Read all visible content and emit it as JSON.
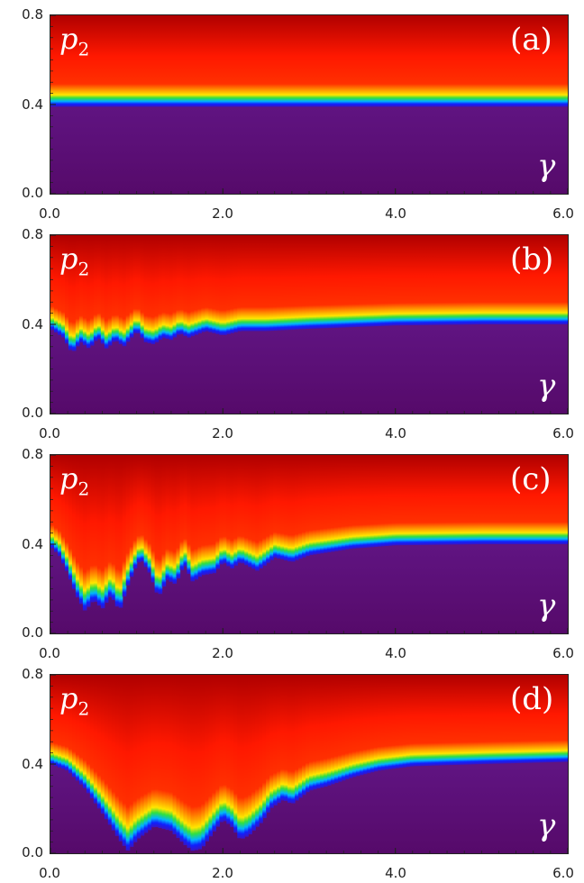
{
  "chart_data": [
    {
      "type": "heatmap",
      "panel_label": "(a)",
      "ylabel": "p",
      "ylabel_sub": "2",
      "xlabel": "γ",
      "xlim": [
        0,
        6
      ],
      "ylim": [
        0,
        0.8
      ],
      "xticks": [
        "0.0",
        "2.0",
        "4.0",
        "6.0"
      ],
      "yticks": [
        "0.0",
        "0.4",
        "0.8"
      ],
      "boundary": [
        [
          0.0,
          0.39
        ],
        [
          1.0,
          0.39
        ],
        [
          2.0,
          0.39
        ],
        [
          3.0,
          0.39
        ],
        [
          4.0,
          0.39
        ],
        [
          5.0,
          0.39
        ],
        [
          6.0,
          0.39
        ]
      ]
    },
    {
      "type": "heatmap",
      "panel_label": "(b)",
      "ylabel": "p",
      "ylabel_sub": "2",
      "xlabel": "γ",
      "xlim": [
        0,
        6
      ],
      "ylim": [
        0,
        0.8
      ],
      "xticks": [
        "0.0",
        "2.0",
        "4.0",
        "6.0"
      ],
      "yticks": [
        "0.0",
        "0.4",
        "0.8"
      ],
      "boundary": [
        [
          0.0,
          0.38
        ],
        [
          0.15,
          0.34
        ],
        [
          0.25,
          0.27
        ],
        [
          0.35,
          0.32
        ],
        [
          0.45,
          0.29
        ],
        [
          0.55,
          0.34
        ],
        [
          0.65,
          0.29
        ],
        [
          0.75,
          0.33
        ],
        [
          0.85,
          0.3
        ],
        [
          1.0,
          0.37
        ],
        [
          1.1,
          0.32
        ],
        [
          1.2,
          0.31
        ],
        [
          1.3,
          0.34
        ],
        [
          1.4,
          0.33
        ],
        [
          1.5,
          0.36
        ],
        [
          1.6,
          0.34
        ],
        [
          1.8,
          0.37
        ],
        [
          2.0,
          0.35
        ],
        [
          2.2,
          0.37
        ],
        [
          2.5,
          0.37
        ],
        [
          3.0,
          0.38
        ],
        [
          4.0,
          0.395
        ],
        [
          5.0,
          0.4
        ],
        [
          6.0,
          0.4
        ]
      ]
    },
    {
      "type": "heatmap",
      "panel_label": "(c)",
      "ylabel": "p",
      "ylabel_sub": "2",
      "xlabel": "γ",
      "xlim": [
        0,
        6
      ],
      "ylim": [
        0,
        0.8
      ],
      "xticks": [
        "0.0",
        "2.0",
        "4.0",
        "6.0"
      ],
      "yticks": [
        "0.0",
        "0.4",
        "0.8"
      ],
      "boundary": [
        [
          0.0,
          0.39
        ],
        [
          0.1,
          0.35
        ],
        [
          0.2,
          0.27
        ],
        [
          0.3,
          0.17
        ],
        [
          0.4,
          0.1
        ],
        [
          0.5,
          0.15
        ],
        [
          0.6,
          0.11
        ],
        [
          0.7,
          0.17
        ],
        [
          0.8,
          0.1
        ],
        [
          0.9,
          0.22
        ],
        [
          1.0,
          0.31
        ],
        [
          1.05,
          0.33
        ],
        [
          1.15,
          0.27
        ],
        [
          1.25,
          0.16
        ],
        [
          1.35,
          0.24
        ],
        [
          1.45,
          0.22
        ],
        [
          1.55,
          0.31
        ],
        [
          1.65,
          0.23
        ],
        [
          1.75,
          0.26
        ],
        [
          1.9,
          0.27
        ],
        [
          2.0,
          0.32
        ],
        [
          2.1,
          0.29
        ],
        [
          2.2,
          0.32
        ],
        [
          2.4,
          0.28
        ],
        [
          2.6,
          0.34
        ],
        [
          2.8,
          0.32
        ],
        [
          3.0,
          0.35
        ],
        [
          3.5,
          0.38
        ],
        [
          4.0,
          0.395
        ],
        [
          5.0,
          0.4
        ],
        [
          6.0,
          0.4
        ]
      ]
    },
    {
      "type": "heatmap",
      "panel_label": "(d)",
      "ylabel": "p",
      "ylabel_sub": "2",
      "xlabel": "γ",
      "xlim": [
        0,
        6
      ],
      "ylim": [
        0,
        0.8
      ],
      "xticks": [
        "0.0",
        "2.0",
        "4.0",
        "6.0"
      ],
      "yticks": [
        "0.0",
        "0.4",
        "0.8"
      ],
      "boundary": [
        [
          0.0,
          0.4
        ],
        [
          0.2,
          0.37
        ],
        [
          0.4,
          0.29
        ],
        [
          0.6,
          0.18
        ],
        [
          0.8,
          0.06
        ],
        [
          0.9,
          0.01
        ],
        [
          1.0,
          0.06
        ],
        [
          1.2,
          0.12
        ],
        [
          1.4,
          0.1
        ],
        [
          1.55,
          0.04
        ],
        [
          1.65,
          0.01
        ],
        [
          1.75,
          0.02
        ],
        [
          1.9,
          0.1
        ],
        [
          2.0,
          0.15
        ],
        [
          2.1,
          0.12
        ],
        [
          2.2,
          0.06
        ],
        [
          2.3,
          0.08
        ],
        [
          2.45,
          0.14
        ],
        [
          2.55,
          0.2
        ],
        [
          2.7,
          0.24
        ],
        [
          2.8,
          0.22
        ],
        [
          3.0,
          0.28
        ],
        [
          3.2,
          0.3
        ],
        [
          3.5,
          0.34
        ],
        [
          3.8,
          0.37
        ],
        [
          4.2,
          0.39
        ],
        [
          5.0,
          0.4
        ],
        [
          6.0,
          0.41
        ]
      ]
    }
  ]
}
